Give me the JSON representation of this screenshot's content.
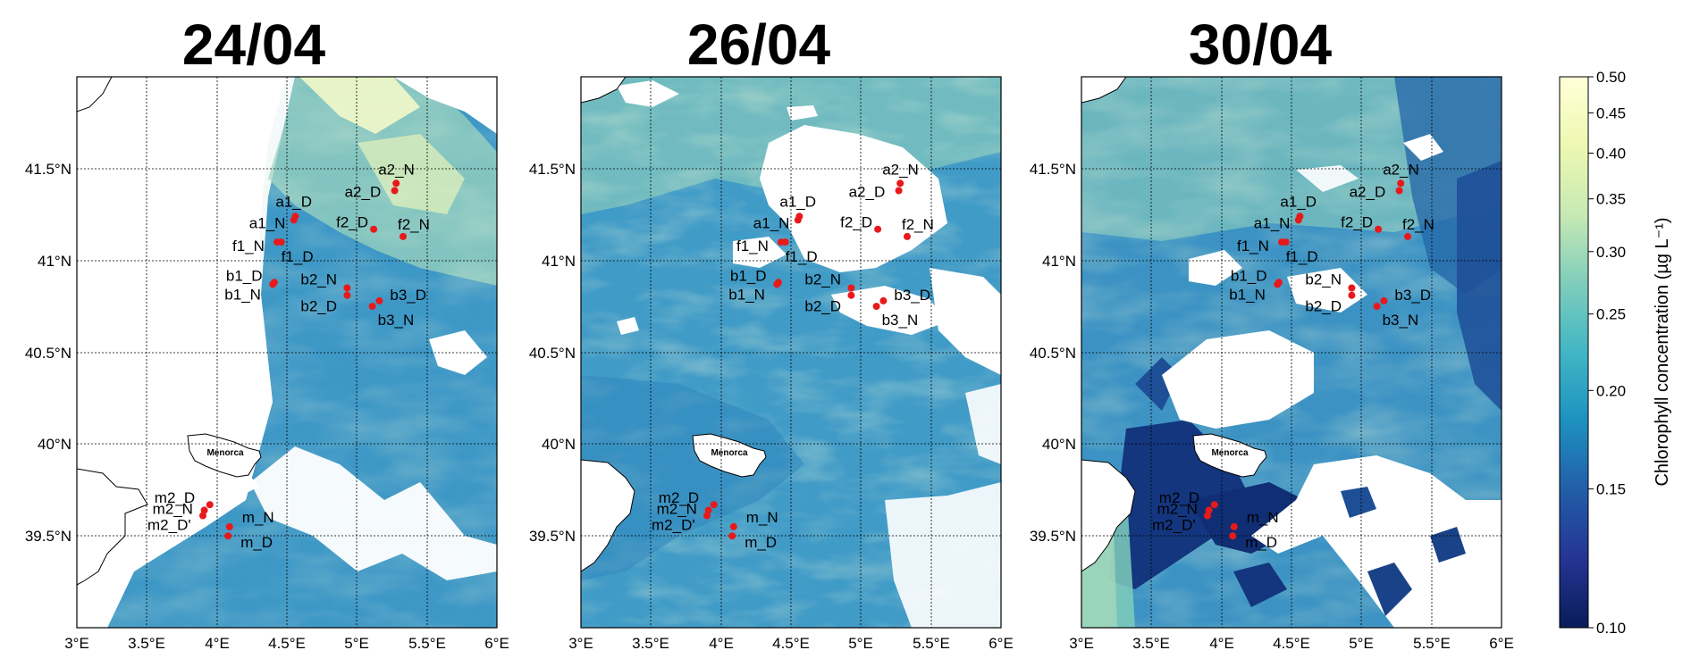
{
  "panels": [
    {
      "title": "24/04",
      "coverage": "partial-east"
    },
    {
      "title": "26/04",
      "coverage": "mostly-full"
    },
    {
      "title": "30/04",
      "coverage": "full"
    }
  ],
  "axes": {
    "lon_ticks": [
      "3°E",
      "3.5°E",
      "4°E",
      "4.5°E",
      "5°E",
      "5.5°E",
      "6°E"
    ],
    "lat_ticks": [
      "41.5°N",
      "41°N",
      "40.5°N",
      "40°N",
      "39.5°N"
    ],
    "lon_range": [
      3.0,
      6.0
    ],
    "lat_range": [
      39.0,
      42.0
    ],
    "grid": true
  },
  "island_label": "Menorca",
  "sites": [
    {
      "label": "a2_N",
      "lon": 5.28,
      "lat": 41.42
    },
    {
      "label": "a2_D",
      "lon": 5.27,
      "lat": 41.38
    },
    {
      "label": "a1_D",
      "lon": 4.56,
      "lat": 41.24
    },
    {
      "label": "a1_N",
      "lon": 4.55,
      "lat": 41.22
    },
    {
      "label": "f2_D",
      "lon": 5.12,
      "lat": 41.17
    },
    {
      "label": "f2_N",
      "lon": 5.33,
      "lat": 41.13
    },
    {
      "label": "f1_N",
      "lon": 4.43,
      "lat": 41.1
    },
    {
      "label": "f1_D",
      "lon": 4.46,
      "lat": 41.1
    },
    {
      "label": "b1_D",
      "lon": 4.41,
      "lat": 40.88
    },
    {
      "label": "b1_N",
      "lon": 4.4,
      "lat": 40.87
    },
    {
      "label": "b2_N",
      "lon": 4.93,
      "lat": 40.85
    },
    {
      "label": "b2_D",
      "lon": 4.93,
      "lat": 40.81
    },
    {
      "label": "b3_D",
      "lon": 5.16,
      "lat": 40.78
    },
    {
      "label": "b3_N",
      "lon": 5.11,
      "lat": 40.75
    },
    {
      "label": "m2_D",
      "lon": 3.95,
      "lat": 39.67
    },
    {
      "label": "m2_N",
      "lon": 3.91,
      "lat": 39.64
    },
    {
      "label": "m2_D'",
      "lon": 3.9,
      "lat": 39.61
    },
    {
      "label": "m_N",
      "lon": 4.09,
      "lat": 39.55
    },
    {
      "label": "m_D",
      "lon": 4.08,
      "lat": 39.5
    }
  ],
  "colorbar": {
    "label": "Chlorophyll concentration (µg L⁻¹)",
    "min": 0.1,
    "max": 0.5,
    "scale": "log",
    "ticks": [
      "0.50",
      "0.45",
      "0.40",
      "0.35",
      "0.30",
      "0.25",
      "0.20",
      "0.15",
      "0.10"
    ],
    "tick_values": [
      0.5,
      0.45,
      0.4,
      0.35,
      0.3,
      0.25,
      0.2,
      0.15,
      0.1
    ],
    "colors": [
      "#081d58",
      "#253494",
      "#225ea8",
      "#1d91c0",
      "#41b6c4",
      "#7fcdbb",
      "#c7e9b4",
      "#edf8b1",
      "#ffffd9"
    ]
  },
  "styles": {
    "marker_color": "#e8191b",
    "land_color": "#ffffff",
    "cloud_color": "#ffffff",
    "sea_base": "#41a0c8",
    "sea_dark": "#1d5fa6",
    "sea_light": "#b8e0b4"
  }
}
